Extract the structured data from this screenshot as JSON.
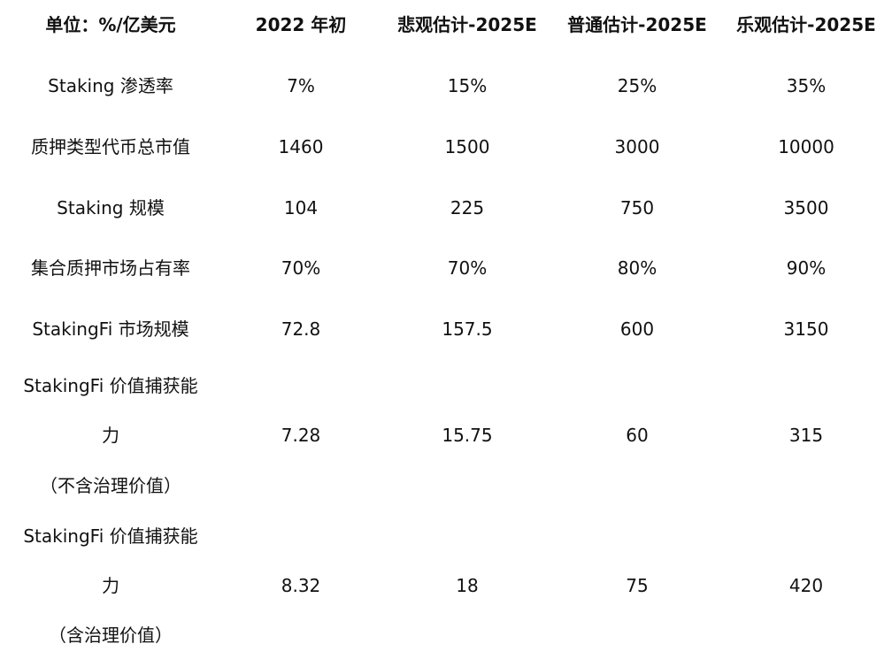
{
  "table": {
    "header": [
      "单位：%/亿美元",
      "2022 年初",
      "悲观估计-2025E",
      "普通估计-2025E",
      "乐观估计-2025E"
    ],
    "rows": [
      {
        "label": "Staking 渗透率",
        "values": [
          "7%",
          "15%",
          "25%",
          "35%"
        ]
      },
      {
        "label": "质押类型代币总市值",
        "values": [
          "1460",
          "1500",
          "3000",
          "10000"
        ]
      },
      {
        "label": "Staking 规模",
        "values": [
          "104",
          "225",
          "750",
          "3500"
        ]
      },
      {
        "label": "集合质押市场占有率",
        "values": [
          "70%",
          "70%",
          "80%",
          "90%"
        ]
      },
      {
        "label": "StakingFi 市场规模",
        "values": [
          "72.8",
          "157.5",
          "600",
          "3150"
        ]
      },
      {
        "label_lines": [
          "StakingFi 价值捕获能",
          "力",
          "（不含治理价值）"
        ],
        "values": [
          "7.28",
          "15.75",
          "60",
          "315"
        ]
      },
      {
        "label_lines": [
          "StakingFi 价值捕获能",
          "力",
          "（含治理价值）"
        ],
        "values": [
          "8.32",
          "18",
          "75",
          "420"
        ]
      }
    ]
  }
}
